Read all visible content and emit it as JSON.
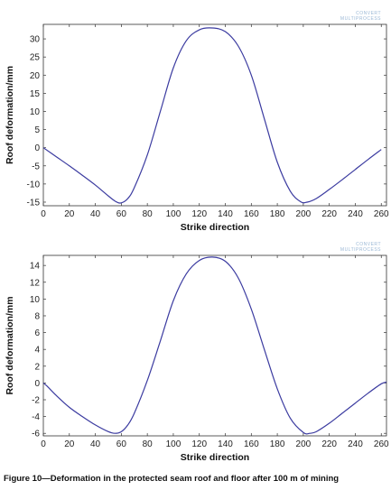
{
  "chart_data": [
    {
      "type": "line",
      "xlabel": "Strike direction",
      "ylabel": "Roof deformation/mm",
      "xlim": [
        0,
        264
      ],
      "ylim": [
        -16,
        34
      ],
      "xticks": [
        0,
        20,
        40,
        60,
        80,
        100,
        120,
        140,
        160,
        180,
        200,
        220,
        240,
        260
      ],
      "yticks": [
        -15,
        -10,
        -5,
        0,
        5,
        10,
        15,
        20,
        25,
        30
      ],
      "grid": false,
      "watermark": [
        "CONVERT",
        "MULTIPROCESS"
      ],
      "series": [
        {
          "x": [
            0,
            10,
            20,
            30,
            40,
            50,
            56,
            60,
            65,
            70,
            80,
            90,
            100,
            110,
            120,
            130,
            140,
            150,
            160,
            170,
            180,
            190,
            198,
            203,
            210,
            220,
            230,
            240,
            250,
            260
          ],
          "y": [
            0,
            -2.5,
            -5.0,
            -7.6,
            -10.3,
            -13.3,
            -14.9,
            -15.2,
            -14.0,
            -11.0,
            -2.0,
            10.0,
            22.0,
            29.5,
            32.5,
            33.0,
            32.0,
            28.0,
            20.0,
            8.0,
            -4.0,
            -12.0,
            -14.9,
            -15.0,
            -14.0,
            -11.5,
            -8.8,
            -6.0,
            -3.2,
            -0.5
          ]
        }
      ]
    },
    {
      "type": "line",
      "xlabel": "Strike direction",
      "ylabel": "Roof deformation/mm",
      "xlim": [
        0,
        264
      ],
      "ylim": [
        -6.3,
        15.2
      ],
      "xticks": [
        0,
        20,
        40,
        60,
        80,
        100,
        120,
        140,
        160,
        180,
        200,
        220,
        240,
        260
      ],
      "yticks": [
        -6,
        -4,
        -2,
        0,
        2,
        4,
        6,
        8,
        10,
        12,
        14
      ],
      "grid": false,
      "watermark": [
        "CONVERT",
        "MULTIPROCESS"
      ],
      "series": [
        {
          "x": [
            0,
            3,
            10,
            20,
            30,
            40,
            50,
            55,
            60,
            65,
            70,
            80,
            90,
            100,
            110,
            120,
            130,
            140,
            150,
            160,
            170,
            180,
            190,
            200,
            205,
            210,
            220,
            230,
            240,
            250,
            260,
            264
          ],
          "y": [
            0,
            -0.4,
            -1.5,
            -2.9,
            -4.0,
            -5.0,
            -5.8,
            -6.0,
            -5.8,
            -5.0,
            -3.6,
            0.3,
            5.0,
            9.8,
            13.0,
            14.6,
            15.0,
            14.5,
            12.5,
            8.8,
            4.0,
            -0.7,
            -4.2,
            -5.9,
            -6.0,
            -5.8,
            -4.8,
            -3.6,
            -2.4,
            -1.2,
            -0.1,
            0.1
          ]
        }
      ]
    }
  ],
  "caption": "Figure 10—Deformation in the protected seam roof and floor after 100 m of mining",
  "colors": {
    "line": "#3b3ba0",
    "axis": "#333333"
  }
}
